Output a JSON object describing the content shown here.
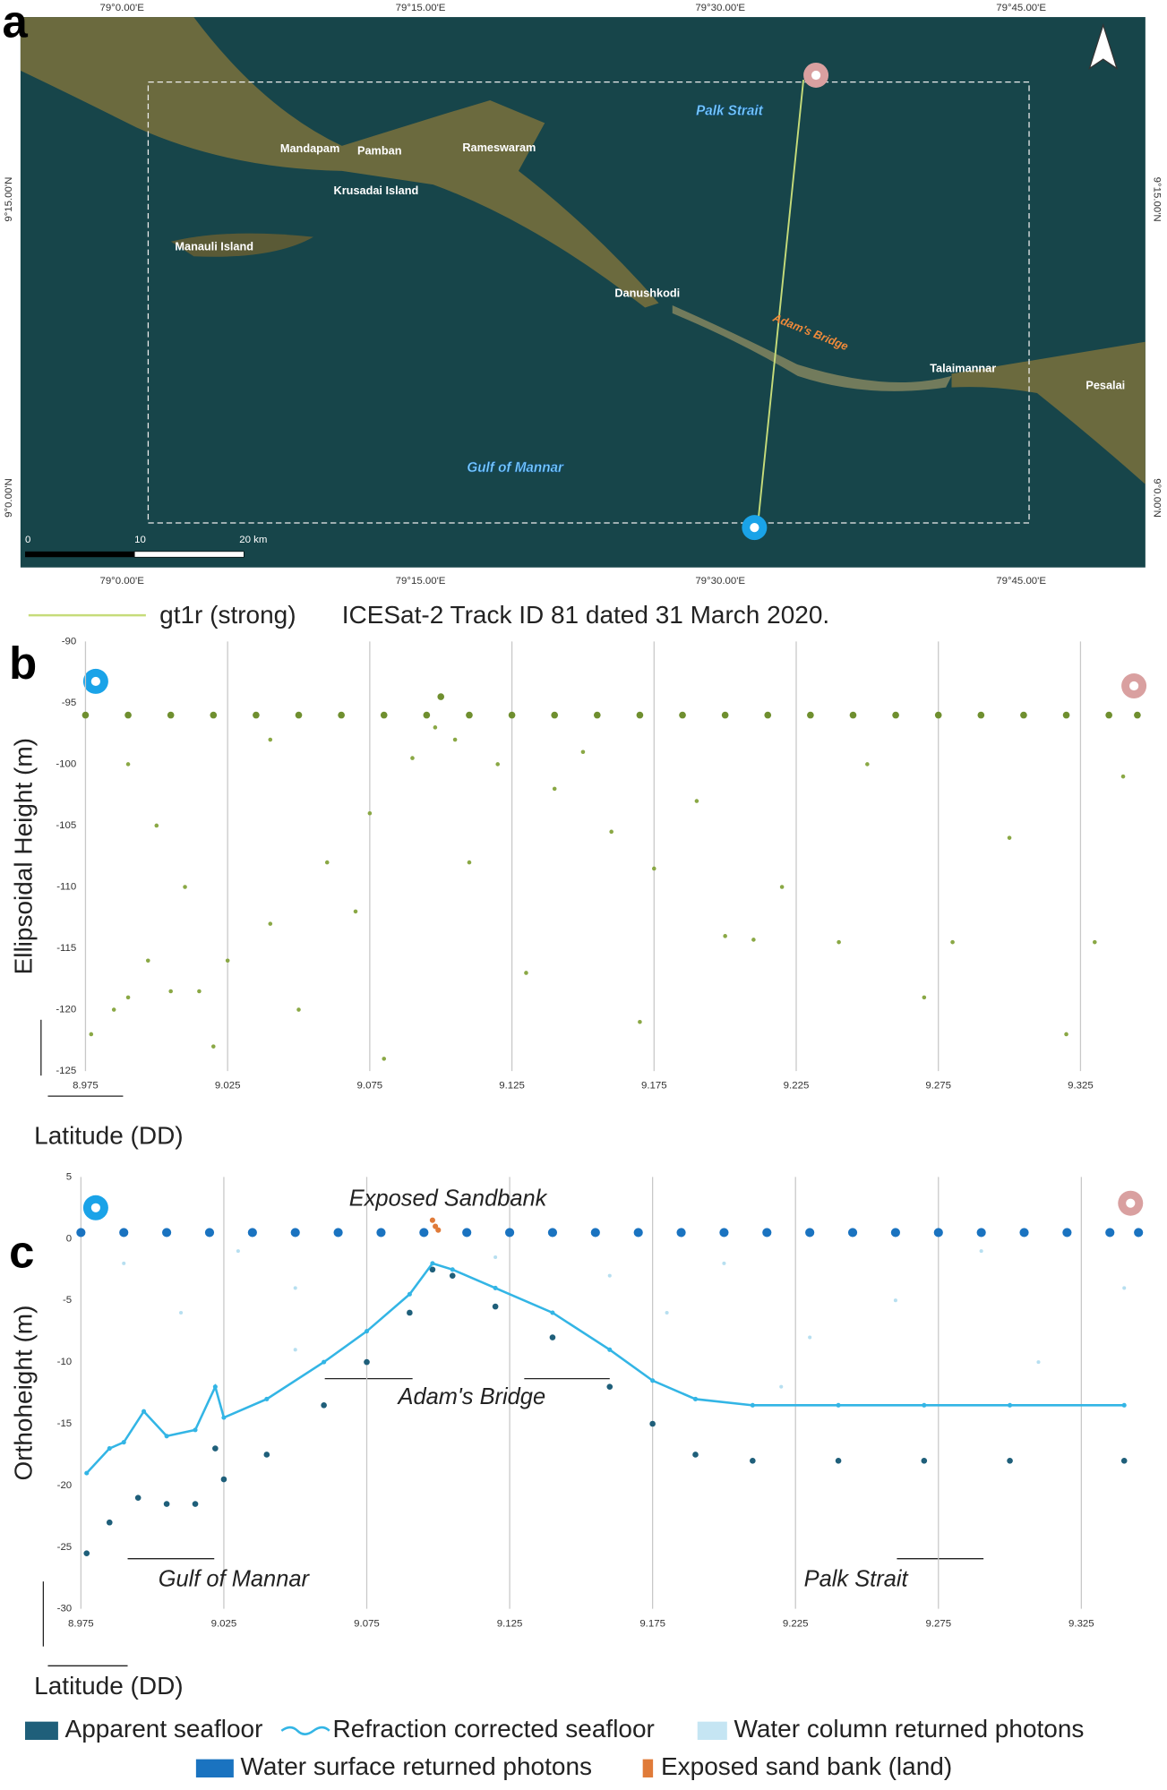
{
  "panel_labels": [
    "a",
    "b",
    "c"
  ],
  "map": {
    "lon_ticks": [
      "79°0.00'E",
      "79°15.00'E",
      "79°30.00'E",
      "79°45.00'E"
    ],
    "lat_ticks": [
      "9°15.00'N",
      "9°0.00'N"
    ],
    "labels": [
      "Mandapam",
      "Pamban",
      "Rameswaram",
      "Krusadai Island",
      "Manauli Island",
      "Danushkodi",
      "Talaimannar",
      "Pesalai"
    ],
    "water_labels": [
      "Palk Strait",
      "Gulf of Mannar"
    ],
    "feature_label": "Adam's Bridge",
    "scale_labels": [
      "0",
      "10",
      "20 km"
    ],
    "track_legend": "gt1r (strong)",
    "caption": "ICESat-2 Track ID 81 dated 31 March 2020."
  },
  "chart_data": [
    {
      "type": "scatter",
      "ylabel": "Ellipsoidal Height (m)",
      "xlabel": "Latitude (DD)",
      "xlim": [
        8.975,
        9.345
      ],
      "xticks": [
        8.975,
        9.025,
        9.075,
        9.125,
        9.175,
        9.225,
        9.275,
        9.325
      ],
      "ylim": [
        -125,
        -90
      ],
      "yticks": [
        -90,
        -95,
        -100,
        -105,
        -110,
        -115,
        -120,
        -125
      ],
      "grid": "x",
      "series": [
        {
          "color": "#6f8f2f",
          "x": [
            8.975,
            8.99,
            9.005,
            9.02,
            9.035,
            9.05,
            9.065,
            9.08,
            9.095,
            9.1,
            9.11,
            9.125,
            9.14,
            9.155,
            9.17,
            9.185,
            9.2,
            9.215,
            9.23,
            9.245,
            9.26,
            9.275,
            9.29,
            9.305,
            9.32,
            9.335,
            9.345
          ],
          "values": [
            -96,
            -96,
            -96,
            -96,
            -96,
            -96,
            -96,
            -96,
            -96,
            -94.5,
            -96,
            -96,
            -96,
            -96,
            -96,
            -96,
            -96,
            -96,
            -96,
            -96,
            -96,
            -96,
            -96,
            -96,
            -96,
            -96,
            -96
          ]
        },
        {
          "color": "#8aa845",
          "x": [
            8.977,
            8.985,
            8.99,
            8.997,
            9.005,
            9.015,
            9.025,
            9.04,
            9.06,
            9.075,
            9.09,
            9.098,
            9.105,
            9.12,
            9.14,
            9.16,
            9.175,
            9.2,
            9.21,
            9.24,
            9.28,
            9.33,
            8.99,
            9.0,
            9.01,
            9.02,
            9.04,
            9.05,
            9.07,
            9.08,
            9.11,
            9.13,
            9.15,
            9.17,
            9.19,
            9.22,
            9.25,
            9.27,
            9.3,
            9.32,
            9.34
          ],
          "values": [
            -122,
            -120,
            -119,
            -116,
            -118.5,
            -118.5,
            -116,
            -113,
            -108,
            -104,
            -99.5,
            -97,
            -98,
            -100,
            -102,
            -105.5,
            -108.5,
            -114,
            -114.3,
            -114.5,
            -114.5,
            -114.5,
            -100,
            -105,
            -110,
            -123,
            -98,
            -120,
            -112,
            -124,
            -108,
            -117,
            -99,
            -121,
            -103,
            -110,
            -100,
            -119,
            -106,
            -122,
            -101
          ]
        }
      ]
    },
    {
      "type": "scatter",
      "ylabel": "Orthoheight (m)",
      "xlabel": "Latitude (DD)",
      "xlim": [
        8.975,
        9.345
      ],
      "xticks": [
        8.975,
        9.025,
        9.075,
        9.125,
        9.175,
        9.225,
        9.275,
        9.325
      ],
      "ylim": [
        -30,
        5
      ],
      "yticks": [
        5,
        0,
        -5,
        -10,
        -15,
        -20,
        -25,
        -30
      ],
      "grid": "x",
      "annotations": [
        "Exposed Sandbank",
        "Adam's Bridge",
        "Gulf of Mannar",
        "Palk Strait"
      ],
      "series": [
        {
          "name": "Apparent seafloor",
          "color": "#1f5f7a",
          "x": [
            8.977,
            8.985,
            8.995,
            9.005,
            9.015,
            9.022,
            9.025,
            9.04,
            9.06,
            9.075,
            9.09,
            9.098,
            9.105,
            9.12,
            9.14,
            9.16,
            9.175,
            9.19,
            9.21,
            9.24,
            9.27,
            9.3,
            9.34
          ],
          "values": [
            -25.5,
            -23,
            -21,
            -21.5,
            -21.5,
            -17,
            -19.5,
            -17.5,
            -13.5,
            -10,
            -6,
            -2.5,
            -3,
            -5.5,
            -8,
            -12,
            -15,
            -17.5,
            -18,
            -18,
            -18,
            -18,
            -18
          ]
        },
        {
          "name": "Refraction corrected seafloor",
          "color": "#33b5e5",
          "mode": "line",
          "x": [
            8.977,
            8.985,
            8.99,
            8.997,
            9.005,
            9.015,
            9.022,
            9.025,
            9.04,
            9.06,
            9.075,
            9.09,
            9.098,
            9.105,
            9.12,
            9.14,
            9.16,
            9.175,
            9.19,
            9.21,
            9.24,
            9.27,
            9.3,
            9.34
          ],
          "values": [
            -19,
            -17,
            -16.5,
            -14,
            -16,
            -15.5,
            -12,
            -14.5,
            -13,
            -10,
            -7.5,
            -4.5,
            -2,
            -2.5,
            -4,
            -6,
            -9,
            -11.5,
            -13,
            -13.5,
            -13.5,
            -13.5,
            -13.5,
            -13.5
          ]
        },
        {
          "name": "Water column returned photons",
          "color": "#b7dff0",
          "x": [
            8.99,
            9.01,
            9.03,
            9.05,
            9.05,
            9.12,
            9.16,
            9.18,
            9.2,
            9.22,
            9.23,
            9.26,
            9.29,
            9.31,
            9.34
          ],
          "values": [
            -2,
            -6,
            -1,
            -4,
            -9,
            -1.5,
            -3,
            -6,
            -2,
            -12,
            -8,
            -5,
            -1,
            -10,
            -4
          ]
        },
        {
          "name": "Water surface returned photons",
          "color": "#1a73c0",
          "x": [
            8.975,
            8.99,
            9.005,
            9.02,
            9.035,
            9.05,
            9.065,
            9.08,
            9.095,
            9.11,
            9.125,
            9.14,
            9.155,
            9.17,
            9.185,
            9.2,
            9.215,
            9.23,
            9.245,
            9.26,
            9.275,
            9.29,
            9.305,
            9.32,
            9.335,
            9.345
          ],
          "values": [
            0.5,
            0.5,
            0.5,
            0.5,
            0.5,
            0.5,
            0.5,
            0.5,
            0.5,
            0.5,
            0.5,
            0.5,
            0.5,
            0.5,
            0.5,
            0.5,
            0.5,
            0.5,
            0.5,
            0.5,
            0.5,
            0.5,
            0.5,
            0.5,
            0.5,
            0.5
          ]
        },
        {
          "name": "Exposed sand bank (land)",
          "color": "#e07b39",
          "x": [
            9.098,
            9.099,
            9.1
          ],
          "values": [
            1.5,
            1.0,
            0.7
          ]
        }
      ]
    }
  ]
}
